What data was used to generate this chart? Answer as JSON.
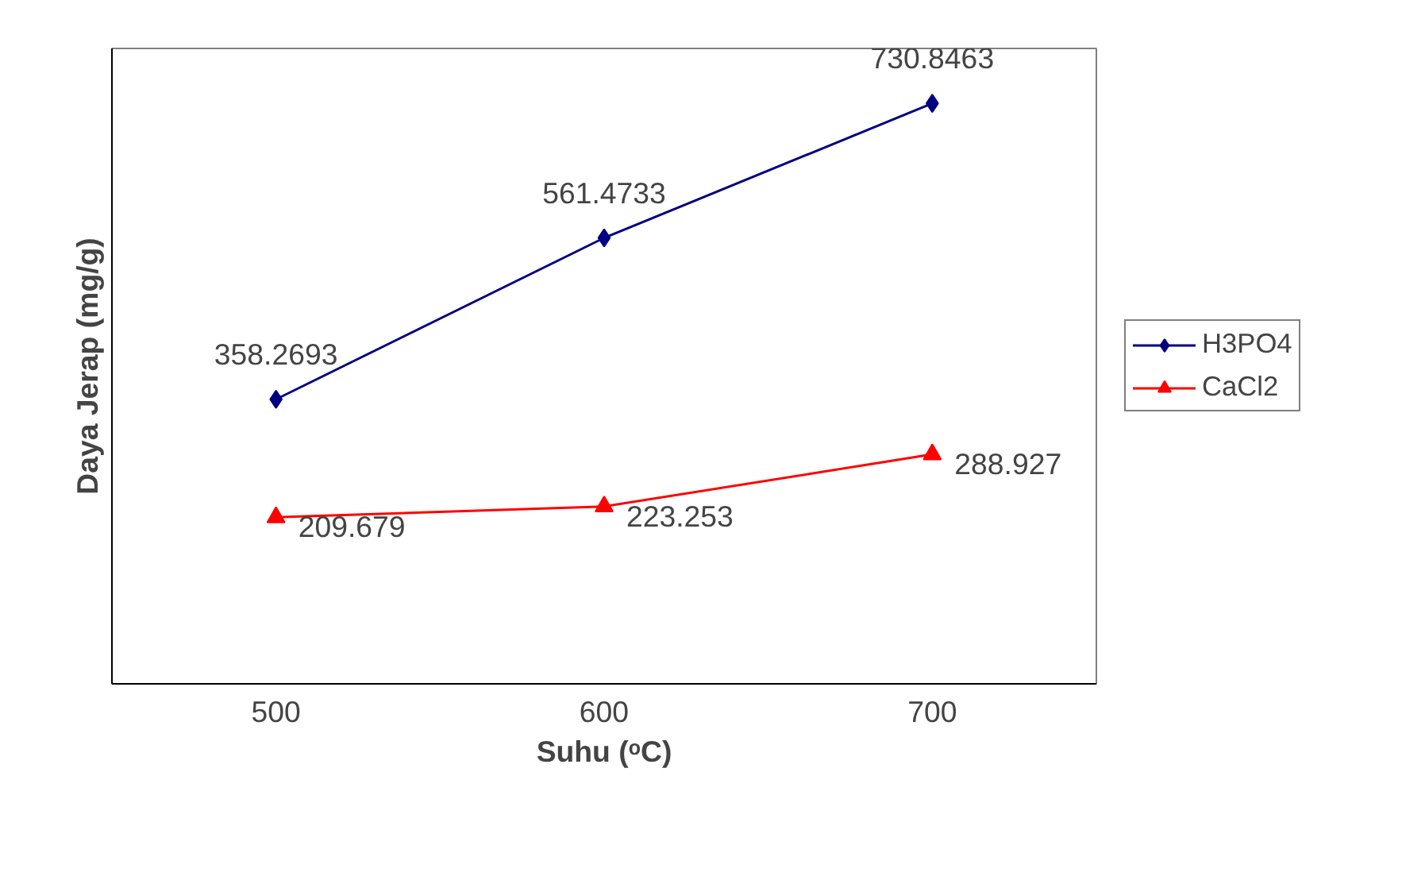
{
  "chart_data": {
    "type": "line",
    "xlabel": "Suhu (ᵒC)",
    "ylabel": "Daya Jerap (mg/g)",
    "categories": [
      "500",
      "600",
      "700"
    ],
    "series": [
      {
        "name": "H3PO4",
        "color": "#000080",
        "marker": "diamond",
        "values": [
          358.2693,
          561.4733,
          730.8463
        ]
      },
      {
        "name": "CaCl2",
        "color": "#ff0000",
        "marker": "triangle",
        "values": [
          209.679,
          223.253,
          288.927
        ]
      }
    ],
    "ylim": [
      0,
      800
    ],
    "tick_labels": "x",
    "data_labels": true,
    "grid": false,
    "legend": "right",
    "line_style": "solid"
  }
}
